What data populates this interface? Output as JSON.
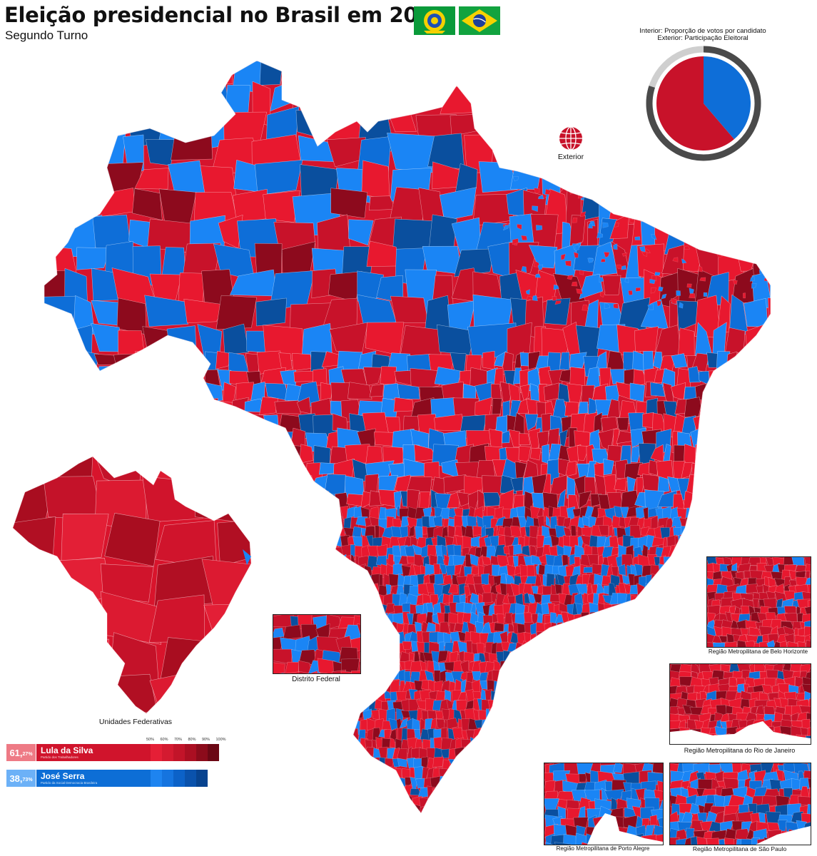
{
  "header": {
    "title": "Eleição presidencial no Brasil em 2002",
    "subtitle": "Segundo Turno"
  },
  "ring_legend": {
    "interior": "Interior: Proporção de votos por candidato",
    "exterior": "Exterior: Participação Eleitoral",
    "lula_share": 61.27,
    "serra_share": 38.73,
    "turnout_fraction": 0.8
  },
  "abroad": {
    "label": "Exterior"
  },
  "insets": {
    "federal_units": "Unidades Federativas",
    "distrito_federal": "Distrito Federal",
    "belo_horizonte": "Região Metropilitana de Belo Horizonte",
    "rio": "Região Metropilitana do Rio de Janeiro",
    "porto_alegre": "Região Metropilitana de Porto Alegre",
    "sao_paulo": "Região Metropilitana de São Paulo"
  },
  "scale": {
    "ticks": [
      "50%",
      "60%",
      "70%",
      "80%",
      "90%",
      "100%"
    ]
  },
  "candidates": [
    {
      "name": "Lula da Silva",
      "party": "Partido dos Trabalhadores",
      "pct_main": "61,",
      "pct_dec": "27%",
      "color": "#d0142c",
      "shades": [
        "#e51f36",
        "#d41a30",
        "#c21429",
        "#ab0f22",
        "#8c0b1b",
        "#6b0714"
      ]
    },
    {
      "name": "José Serra",
      "party": "Partido da Social Democracia Brasileira",
      "pct_main": "38,",
      "pct_dec": "73%",
      "color": "#0d6ed6",
      "shades": [
        "#1e84f0",
        "#1574df",
        "#0c62c8",
        "#0a52ac",
        "#07438f"
      ]
    }
  ],
  "colors": {
    "red_light": "#e8182f",
    "red_mid": "#c8122a",
    "red_dark": "#8d0a1d",
    "blue_light": "#1a85f5",
    "blue_mid": "#0e6ed8",
    "blue_dark": "#0a4f9e",
    "ring_gray": "#4a4a4a"
  }
}
